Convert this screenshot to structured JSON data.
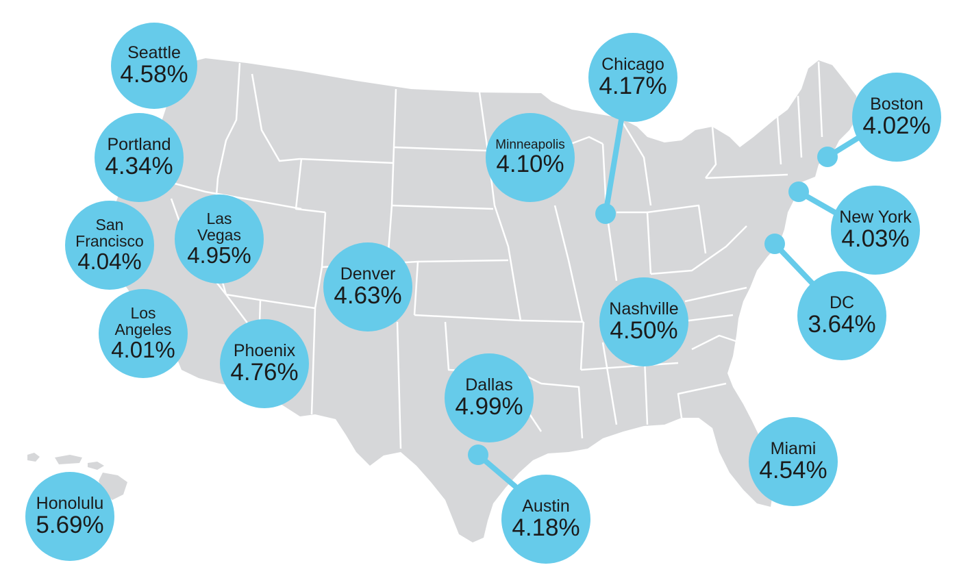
{
  "colors": {
    "land": "#d6d7d9",
    "border": "#ffffff",
    "bubble": "#66cbea",
    "text": "#1b1b1b"
  },
  "cities": [
    {
      "id": "seattle",
      "name": "Seattle",
      "rate": "4.58%"
    },
    {
      "id": "portland",
      "name": "Portland",
      "rate": "4.34%"
    },
    {
      "id": "san-francisco",
      "name": "San Francisco",
      "rate": "4.04%"
    },
    {
      "id": "las-vegas",
      "name": "Las Vegas",
      "rate": "4.95%"
    },
    {
      "id": "los-angeles",
      "name": "Los Angeles",
      "rate": "4.01%"
    },
    {
      "id": "phoenix",
      "name": "Phoenix",
      "rate": "4.76%"
    },
    {
      "id": "denver",
      "name": "Denver",
      "rate": "4.63%"
    },
    {
      "id": "minneapolis",
      "name": "Minneapolis",
      "rate": "4.10%"
    },
    {
      "id": "chicago",
      "name": "Chicago",
      "rate": "4.17%"
    },
    {
      "id": "boston",
      "name": "Boston",
      "rate": "4.02%"
    },
    {
      "id": "new-york",
      "name": "New York",
      "rate": "4.03%"
    },
    {
      "id": "dc",
      "name": "DC",
      "rate": "3.64%"
    },
    {
      "id": "nashville",
      "name": "Nashville",
      "rate": "4.50%"
    },
    {
      "id": "dallas",
      "name": "Dallas",
      "rate": "4.99%"
    },
    {
      "id": "austin",
      "name": "Austin",
      "rate": "4.18%"
    },
    {
      "id": "miami",
      "name": "Miami",
      "rate": "4.54%"
    },
    {
      "id": "honolulu",
      "name": "Honolulu",
      "rate": "5.69%"
    }
  ]
}
